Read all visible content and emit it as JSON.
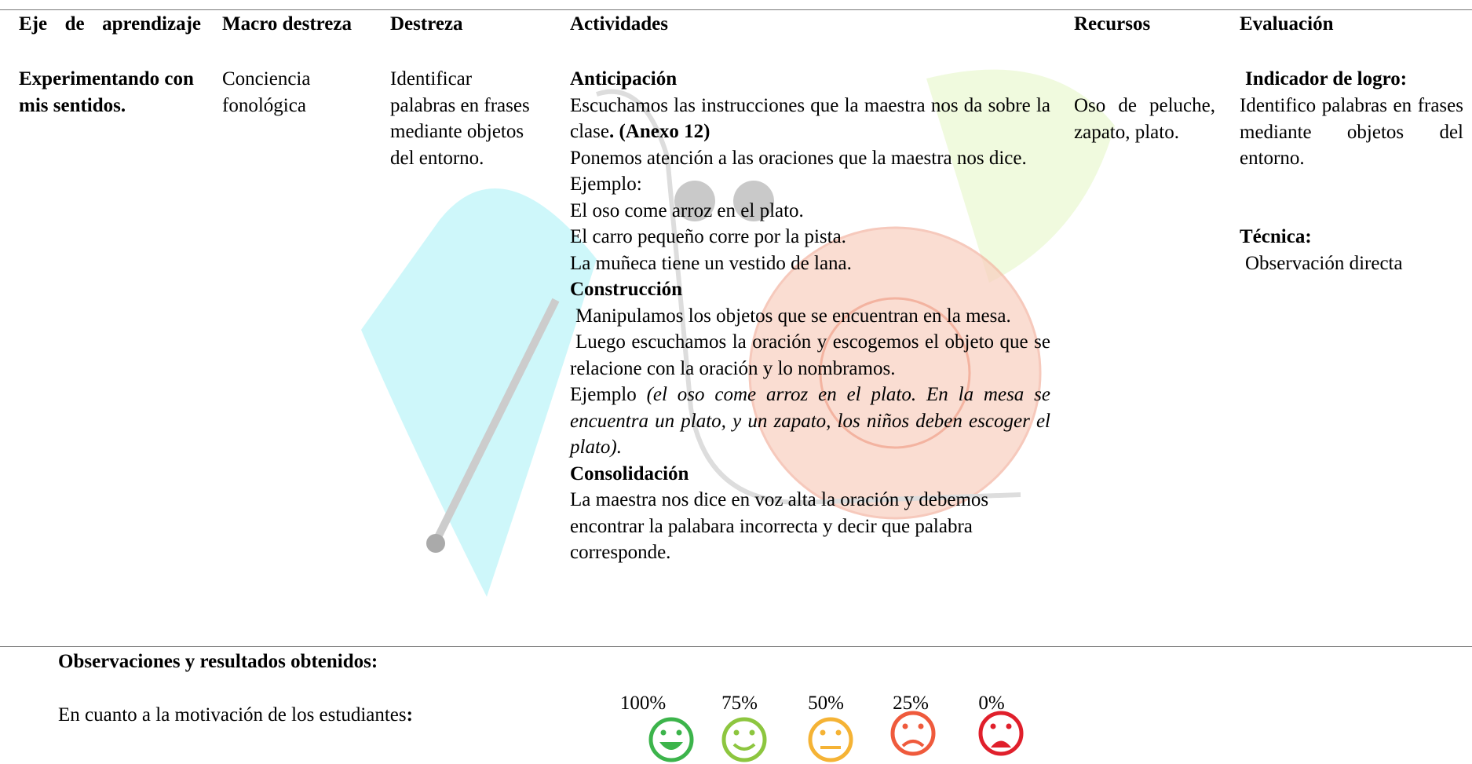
{
  "table": {
    "headers": [
      "Eje de aprendizaje",
      "Macro destreza",
      "Destreza",
      "Actividades",
      "Recursos",
      "Evaluación"
    ],
    "rows": [
      {
        "eje": "Experimentando con mis sentidos.",
        "macro_destreza": "Conciencia fonológica",
        "destreza": "Identificar palabras en frases mediante objetos del entorno.",
        "actividades": [
          {
            "heading": "Anticipación",
            "paragraphs": [
              [
                {
                  "text": "Escuchamos las instrucciones que la maestra nos da sobre la clase"
                },
                {
                  "text": ". (Anexo 12)",
                  "style": "bold"
                }
              ],
              [
                {
                  "text": "Ponemos atención a las oraciones que la maestra nos dice."
                }
              ],
              [
                {
                  "text": "Ejemplo:"
                }
              ],
              [
                {
                  "text": "El oso come arroz en el plato."
                }
              ],
              [
                {
                  "text": "El carro pequeño corre por la pista."
                }
              ],
              [
                {
                  "text": "La muñeca tiene un vestido de lana."
                }
              ]
            ]
          },
          {
            "heading": "Construcción",
            "paragraphs": [
              [
                {
                  "text": "Manipulamos los objetos que se encuentran en la mesa."
                }
              ],
              [
                {
                  "text": "Luego escuchamos la oración y escogemos el objeto que se relacione con la oración y lo nombramos."
                }
              ],
              [
                {
                  "text": "Ejemplo "
                },
                {
                  "text": "(el oso come arroz en el plato. En la mesa se encuentra un plato, y un zapato, los niños deben escoger el plato).",
                  "style": "italic"
                }
              ]
            ]
          },
          {
            "heading": "Consolidación",
            "paragraphs": [
              [
                {
                  "text": "La maestra nos dice en voz alta la oración y debemos encontrar la palabara incorrecta y decir que palabra corresponde."
                }
              ]
            ]
          }
        ],
        "recursos": "Oso de peluche, zapato, plato.",
        "evaluacion": {
          "indicador_title": "Indicador de logro:",
          "indicador": "Identifico palabras en frases mediante objetos del entorno.",
          "tecnica_title": "Técnica:",
          "tecnica": "Observación directa"
        }
      }
    ]
  },
  "footer": {
    "title": "Observaciones y resultados obtenidos:",
    "motivation_label": [
      {
        "text": "En cuanto a la motivación de los estudiantes"
      },
      {
        "text": ":",
        "style": "bold"
      }
    ],
    "scale": [
      "100%",
      "75%",
      "50%",
      "25%",
      "0%"
    ]
  }
}
